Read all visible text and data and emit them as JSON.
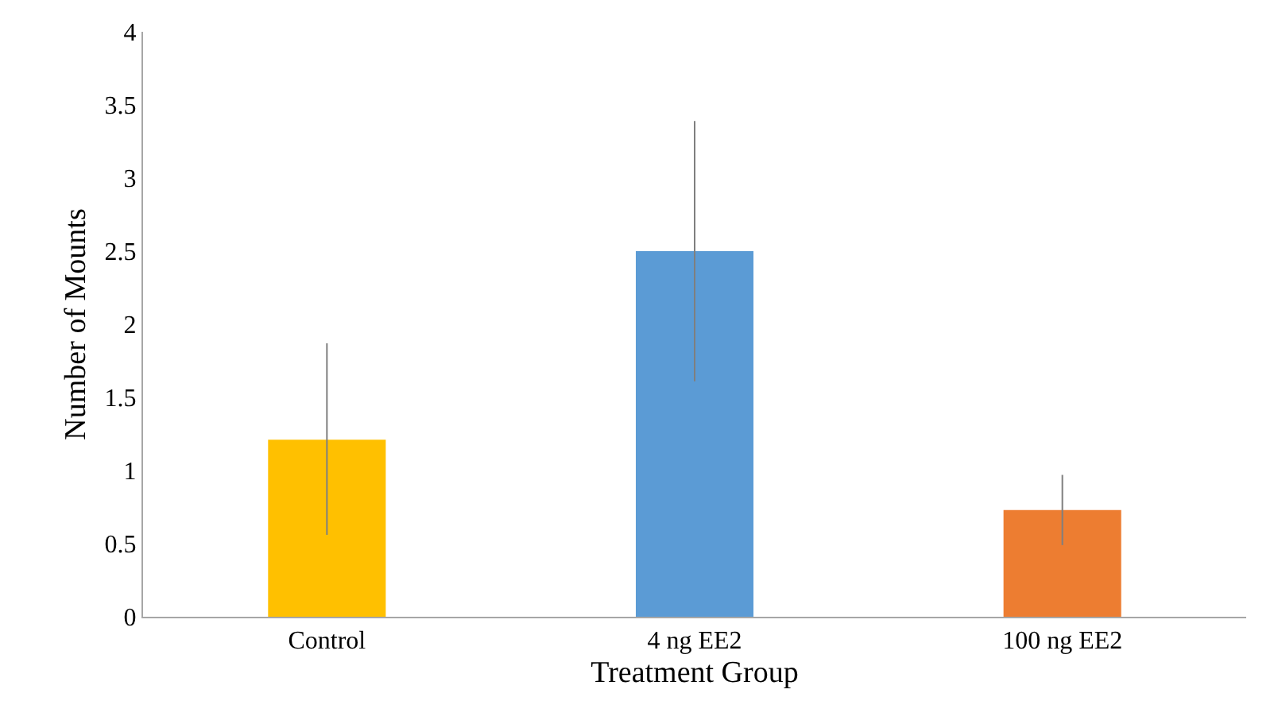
{
  "chart_data": {
    "type": "bar",
    "xlabel": "Treatment Group",
    "ylabel": "Number of Mounts",
    "categories": [
      "Control",
      "4 ng EE2",
      "100 ng EE2"
    ],
    "values": [
      1.21,
      2.5,
      0.73
    ],
    "colors": [
      "#ffc000",
      "#5b9bd5",
      "#ed7d31"
    ],
    "errors": [
      [
        0.56,
        1.87
      ],
      [
        1.61,
        3.39
      ],
      [
        0.49,
        0.97
      ]
    ],
    "ylim": [
      0,
      4
    ],
    "yticks": [
      0,
      0.5,
      1,
      1.5,
      2,
      2.5,
      3,
      3.5,
      4
    ]
  }
}
